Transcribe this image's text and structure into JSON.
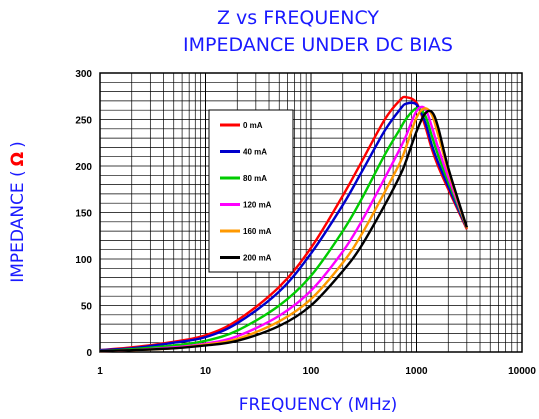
{
  "chart_data": {
    "type": "line",
    "title": "Z vs FREQUENCY",
    "subtitle": "IMPEDANCE UNDER DC BIAS",
    "xlabel": "FREQUENCY (MHz)",
    "ylabel": "IMPEDANCE (",
    "ylabel_unit": "Ω",
    "ylabel_close": ")",
    "xscale": "log",
    "xlim": [
      1,
      10000
    ],
    "ylim": [
      0,
      300
    ],
    "xticks": [
      "1",
      "10",
      "100",
      "1000",
      "10000"
    ],
    "yticks": [
      "0",
      "50",
      "100",
      "150",
      "200",
      "250",
      "300"
    ],
    "grid": true,
    "legend_position": "upper-left inside plot",
    "x": [
      1,
      2,
      5,
      10,
      20,
      50,
      100,
      200,
      300,
      500,
      700,
      800,
      1000,
      1200,
      1400,
      1600,
      2000,
      3000
    ],
    "series": [
      {
        "name": "0 mA",
        "color": "#ff0000",
        "values": [
          2,
          5,
          11,
          18,
          34,
          70,
          112,
          168,
          204,
          250,
          271,
          274,
          268,
          244,
          218,
          200,
          175,
          132
        ]
      },
      {
        "name": "40 mA",
        "color": "#0000cc",
        "values": [
          2,
          4,
          10,
          16,
          31,
          65,
          106,
          158,
          193,
          238,
          261,
          267,
          266,
          248,
          222,
          204,
          178,
          133
        ]
      },
      {
        "name": "80 mA",
        "color": "#00cc00",
        "values": [
          1,
          3,
          7,
          12,
          23,
          50,
          82,
          130,
          164,
          212,
          240,
          251,
          262,
          255,
          232,
          212,
          183,
          134
        ]
      },
      {
        "name": "120 mA",
        "color": "#ff00ff",
        "values": [
          1,
          2,
          5,
          9,
          17,
          39,
          66,
          108,
          140,
          187,
          219,
          233,
          259,
          262,
          242,
          220,
          188,
          134
        ]
      },
      {
        "name": "160 mA",
        "color": "#ff9900",
        "values": [
          1,
          2,
          4,
          8,
          14,
          33,
          57,
          96,
          126,
          172,
          204,
          221,
          252,
          262,
          255,
          234,
          195,
          133
        ]
      },
      {
        "name": "200 mA",
        "color": "#000000",
        "values": [
          1,
          2,
          4,
          7,
          12,
          28,
          50,
          87,
          114,
          158,
          190,
          206,
          237,
          256,
          258,
          242,
          198,
          134
        ]
      }
    ]
  }
}
